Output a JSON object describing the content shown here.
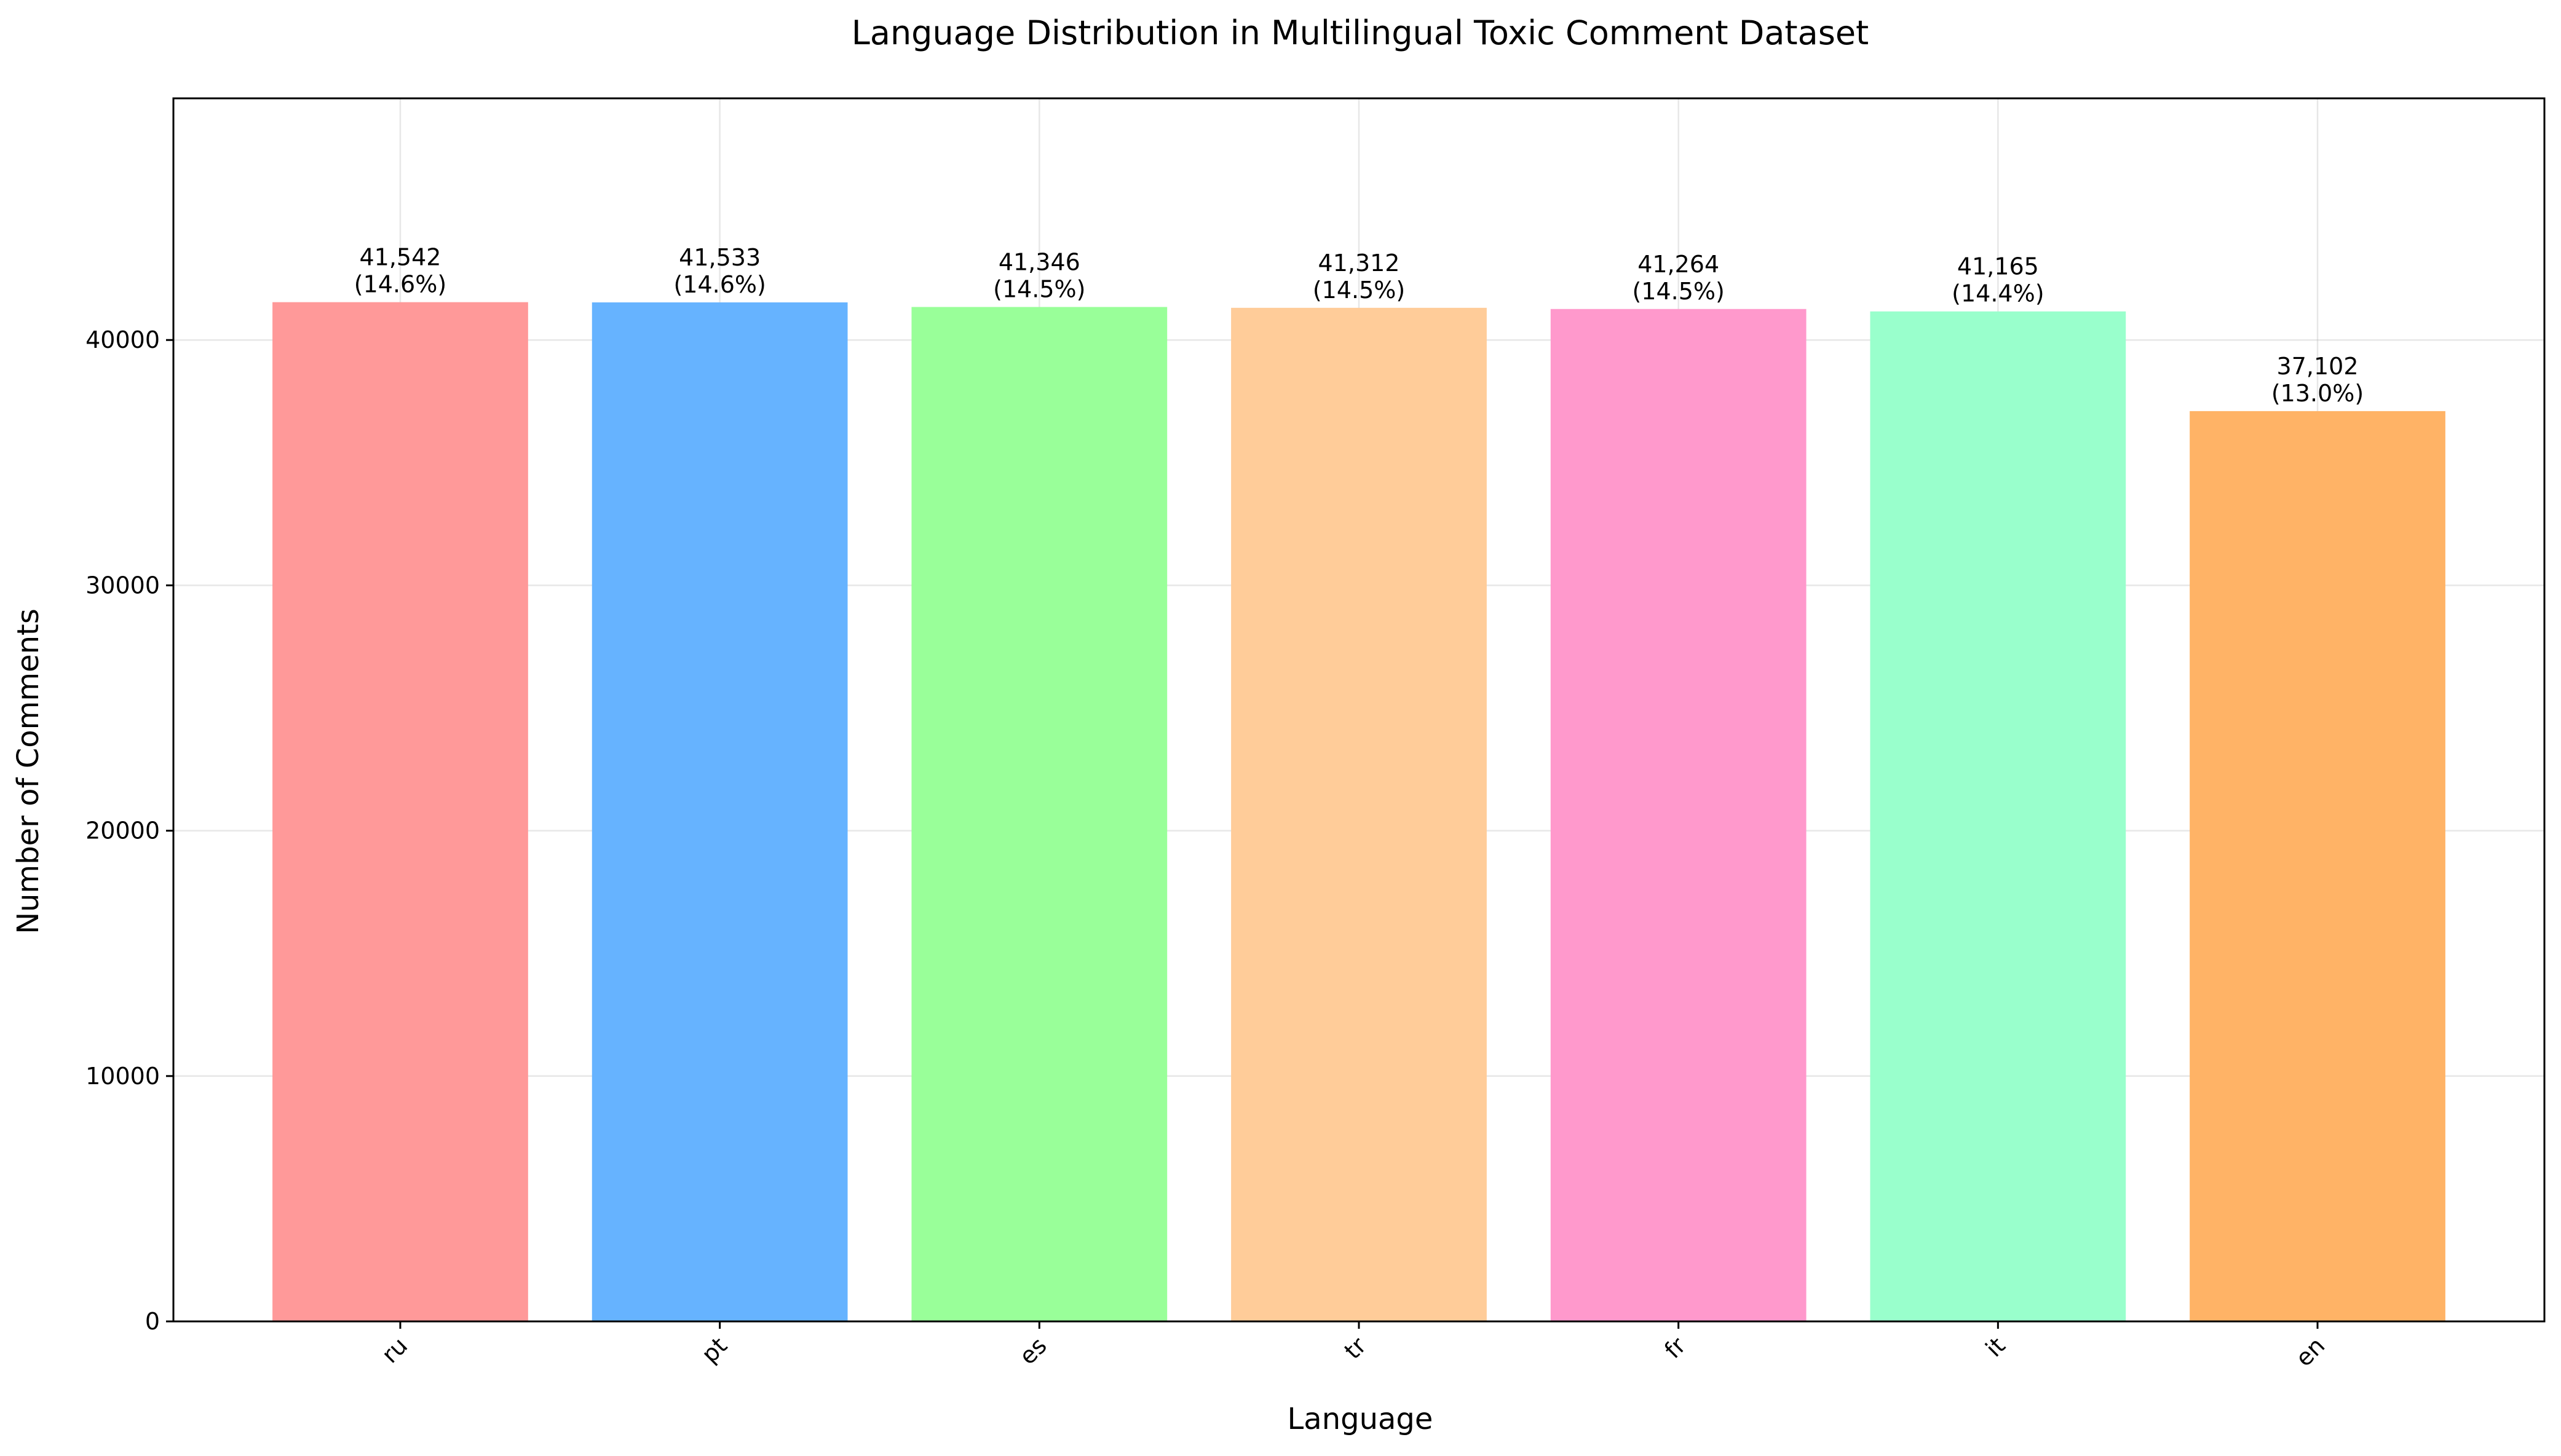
{
  "chart_data": {
    "type": "bar",
    "title": "Language Distribution in Multilingual Toxic Comment Dataset",
    "xlabel": "Language",
    "ylabel": "Number of Comments",
    "categories": [
      "ru",
      "pt",
      "es",
      "tr",
      "fr",
      "it",
      "en"
    ],
    "values": [
      41542,
      41533,
      41346,
      41312,
      41264,
      41165,
      37102
    ],
    "value_labels": [
      "41,542",
      "41,533",
      "41,346",
      "41,312",
      "41,264",
      "41,165",
      "37,102"
    ],
    "percent_labels": [
      "(14.6%)",
      "(14.6%)",
      "(14.5%)",
      "(14.5%)",
      "(14.5%)",
      "(14.4%)",
      "(13.0%)"
    ],
    "colors": [
      "#ff9999",
      "#66b3ff",
      "#99ff99",
      "#ffcc99",
      "#ff99cc",
      "#99ffcc",
      "#ffb366"
    ],
    "ylim": [
      0,
      49850
    ],
    "yticks": [
      0,
      10000,
      20000,
      30000,
      40000
    ],
    "ytick_labels": [
      "0",
      "10000",
      "20000",
      "30000",
      "40000"
    ],
    "grid": true,
    "legend": "none",
    "xtick_rotation_deg": 45
  }
}
